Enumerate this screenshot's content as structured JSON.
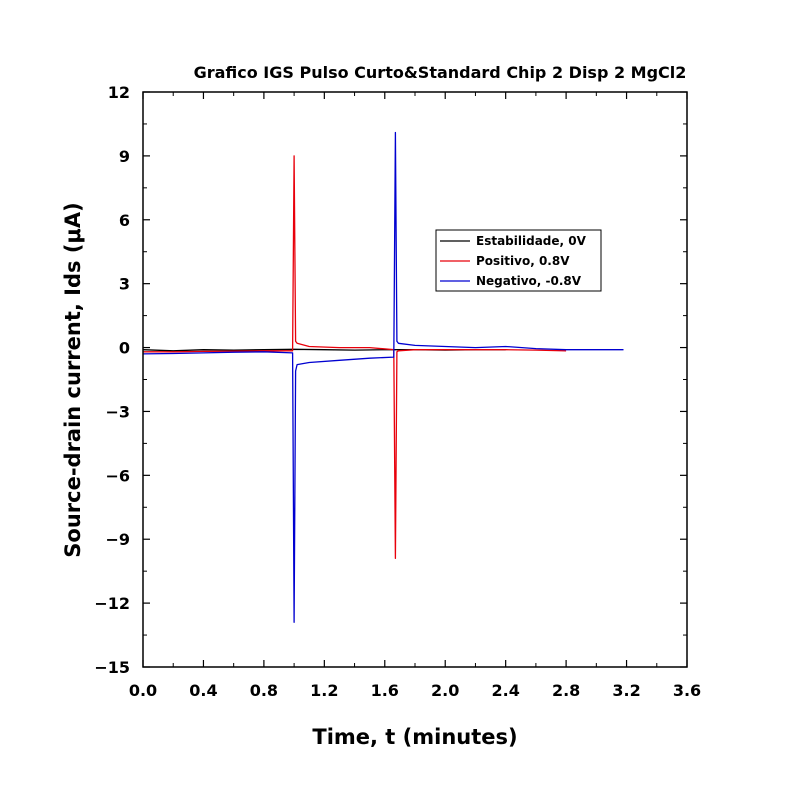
{
  "chart_data": {
    "type": "line",
    "title": "Grafico IGS Pulso Curto&Standard Chip 2 Disp 2 MgCl2",
    "xlabel": "Time, t (minutes)",
    "ylabel": "Source-drain current, Ids (μA)",
    "xlim": [
      0.0,
      3.6
    ],
    "ylim": [
      -15,
      12
    ],
    "x_ticks": [
      "0.0",
      "0.4",
      "0.8",
      "1.2",
      "1.6",
      "2.0",
      "2.4",
      "2.8",
      "3.2",
      "3.6"
    ],
    "x_tick_values": [
      0.0,
      0.4,
      0.8,
      1.2,
      1.6,
      2.0,
      2.4,
      2.8,
      3.2,
      3.6
    ],
    "y_ticks": [
      "12",
      "9",
      "6",
      "3",
      "0",
      "−3",
      "−6",
      "−9",
      "−12",
      "−15"
    ],
    "y_tick_values": [
      12,
      9,
      6,
      3,
      0,
      -3,
      -6,
      -9,
      -12,
      -15
    ],
    "grid": false,
    "legend_position": "upper-right inside",
    "series": [
      {
        "name": "Estabilidade, 0V",
        "color": "#000000",
        "x": [
          0.0,
          0.2,
          0.4,
          0.6,
          0.8,
          1.0,
          1.2,
          1.4,
          1.6,
          1.66,
          1.8,
          2.0,
          2.2,
          2.4
        ],
        "y": [
          -0.1,
          -0.15,
          -0.1,
          -0.12,
          -0.1,
          -0.08,
          -0.1,
          -0.12,
          -0.1,
          -0.1,
          -0.1,
          -0.12,
          -0.1,
          -0.1
        ]
      },
      {
        "name": "Positivo, 0.8V",
        "color": "#e8000b",
        "x": [
          0.0,
          0.2,
          0.4,
          0.6,
          0.8,
          0.99,
          1.0,
          1.01,
          1.02,
          1.1,
          1.3,
          1.5,
          1.66,
          1.67,
          1.68,
          1.69,
          1.8,
          2.0,
          2.2,
          2.4,
          2.6,
          2.8
        ],
        "y": [
          -0.2,
          -0.2,
          -0.18,
          -0.17,
          -0.15,
          -0.15,
          9.0,
          0.3,
          0.2,
          0.05,
          0.0,
          0.0,
          -0.1,
          -9.9,
          -0.2,
          -0.15,
          -0.1,
          -0.1,
          -0.1,
          -0.1,
          -0.12,
          -0.15
        ]
      },
      {
        "name": "Negativo, -0.8V",
        "color": "#0000d0",
        "x": [
          0.0,
          0.2,
          0.4,
          0.6,
          0.8,
          0.99,
          1.0,
          1.01,
          1.02,
          1.1,
          1.3,
          1.5,
          1.66,
          1.67,
          1.68,
          1.69,
          1.8,
          2.0,
          2.2,
          2.4,
          2.6,
          2.8,
          3.0,
          3.18
        ],
        "y": [
          -0.3,
          -0.28,
          -0.25,
          -0.22,
          -0.2,
          -0.25,
          -12.9,
          -1.1,
          -0.8,
          -0.7,
          -0.6,
          -0.5,
          -0.45,
          10.1,
          0.3,
          0.2,
          0.1,
          0.05,
          0.0,
          0.05,
          -0.05,
          -0.1,
          -0.1,
          -0.1
        ]
      }
    ]
  }
}
